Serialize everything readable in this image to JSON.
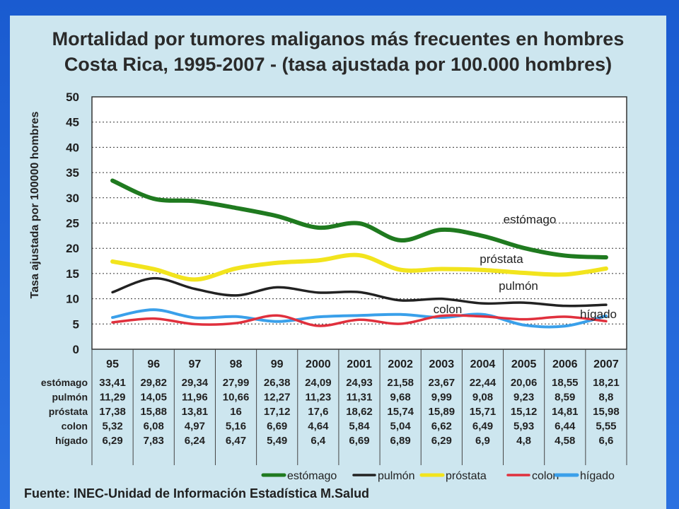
{
  "title_line1": "Mortalidad por tumores maliganos más frecuentes en hombres",
  "title_line2": "Costa Rica, 1995-2007 - (tasa ajustada por 100.000 hombres)",
  "source": "Fuente: INEC-Unidad de Información Estadística M.Salud",
  "colors": {
    "slide_background": "#1f63d6",
    "panel": "#cde6ef",
    "plot": "#ffffff",
    "estomago": "#1f7a1f",
    "pulmon": "#222222",
    "prostata": "#f2e41d",
    "colon": "#e0303d",
    "higado": "#3aa0ea"
  },
  "chart_data": {
    "type": "line",
    "title": "Mortalidad por tumores maliganos más frecuentes en hombres Costa Rica, 1995-2007 - (tasa ajustada por 100.000 hombres)",
    "ylabel": "Tasa ajustada por 100000 hombres",
    "xlabel": "",
    "ylim": [
      0,
      50
    ],
    "yticks": [
      "0",
      "5",
      "10",
      "15",
      "20",
      "25",
      "30",
      "35",
      "40",
      "45",
      "50"
    ],
    "categories": [
      "95",
      "96",
      "97",
      "98",
      "99",
      "2000",
      "2001",
      "2002",
      "2003",
      "2004",
      "2005",
      "2006",
      "2007"
    ],
    "grid": "horizontal dotted",
    "legend_position": "bottom",
    "series": [
      {
        "key": "estomago",
        "name": "estómago",
        "values": [
          33.41,
          29.82,
          29.34,
          27.99,
          26.38,
          24.09,
          24.93,
          21.58,
          23.67,
          22.44,
          20.06,
          18.55,
          18.21
        ],
        "labels": [
          "33,41",
          "29,82",
          "29,34",
          "27,99",
          "26,38",
          "24,09",
          "24,93",
          "21,58",
          "23,67",
          "22,44",
          "20,06",
          "18,55",
          "18,21"
        ]
      },
      {
        "key": "pulmon",
        "name": "pulmón",
        "values": [
          11.29,
          14.05,
          11.96,
          10.66,
          12.27,
          11.23,
          11.31,
          9.68,
          9.99,
          9.08,
          9.23,
          8.59,
          8.8
        ],
        "labels": [
          "11,29",
          "14,05",
          "11,96",
          "10,66",
          "12,27",
          "11,23",
          "11,31",
          "9,68",
          "9,99",
          "9,08",
          "9,23",
          "8,59",
          "8,8"
        ]
      },
      {
        "key": "prostata",
        "name": "próstata",
        "values": [
          17.38,
          15.88,
          13.81,
          16,
          17.12,
          17.6,
          18.62,
          15.74,
          15.89,
          15.71,
          15.12,
          14.81,
          15.98
        ],
        "labels": [
          "17,38",
          "15,88",
          "13,81",
          "16",
          "17,12",
          "17,6",
          "18,62",
          "15,74",
          "15,89",
          "15,71",
          "15,12",
          "14,81",
          "15,98"
        ]
      },
      {
        "key": "colon",
        "name": "colon",
        "values": [
          5.32,
          6.08,
          4.97,
          5.16,
          6.69,
          4.64,
          5.84,
          5.04,
          6.62,
          6.49,
          5.93,
          6.44,
          5.55
        ],
        "labels": [
          "5,32",
          "6,08",
          "4,97",
          "5,16",
          "6,69",
          "4,64",
          "5,84",
          "5,04",
          "6,62",
          "6,49",
          "5,93",
          "6,44",
          "5,55"
        ]
      },
      {
        "key": "higado",
        "name": "hígado",
        "values": [
          6.29,
          7.83,
          6.24,
          6.47,
          5.49,
          6.4,
          6.69,
          6.89,
          6.29,
          6.9,
          4.8,
          4.58,
          6.6
        ],
        "labels": [
          "6,29",
          "7,83",
          "6,24",
          "6,47",
          "5,49",
          "6,4",
          "6,69",
          "6,89",
          "6,29",
          "6,9",
          "4,8",
          "4,58",
          "6,6"
        ]
      }
    ],
    "line_labels": {
      "estomago": "estómago",
      "prostata": "próstata",
      "pulmon": "pulmón",
      "colon": "colon",
      "higado": "hígado"
    }
  }
}
